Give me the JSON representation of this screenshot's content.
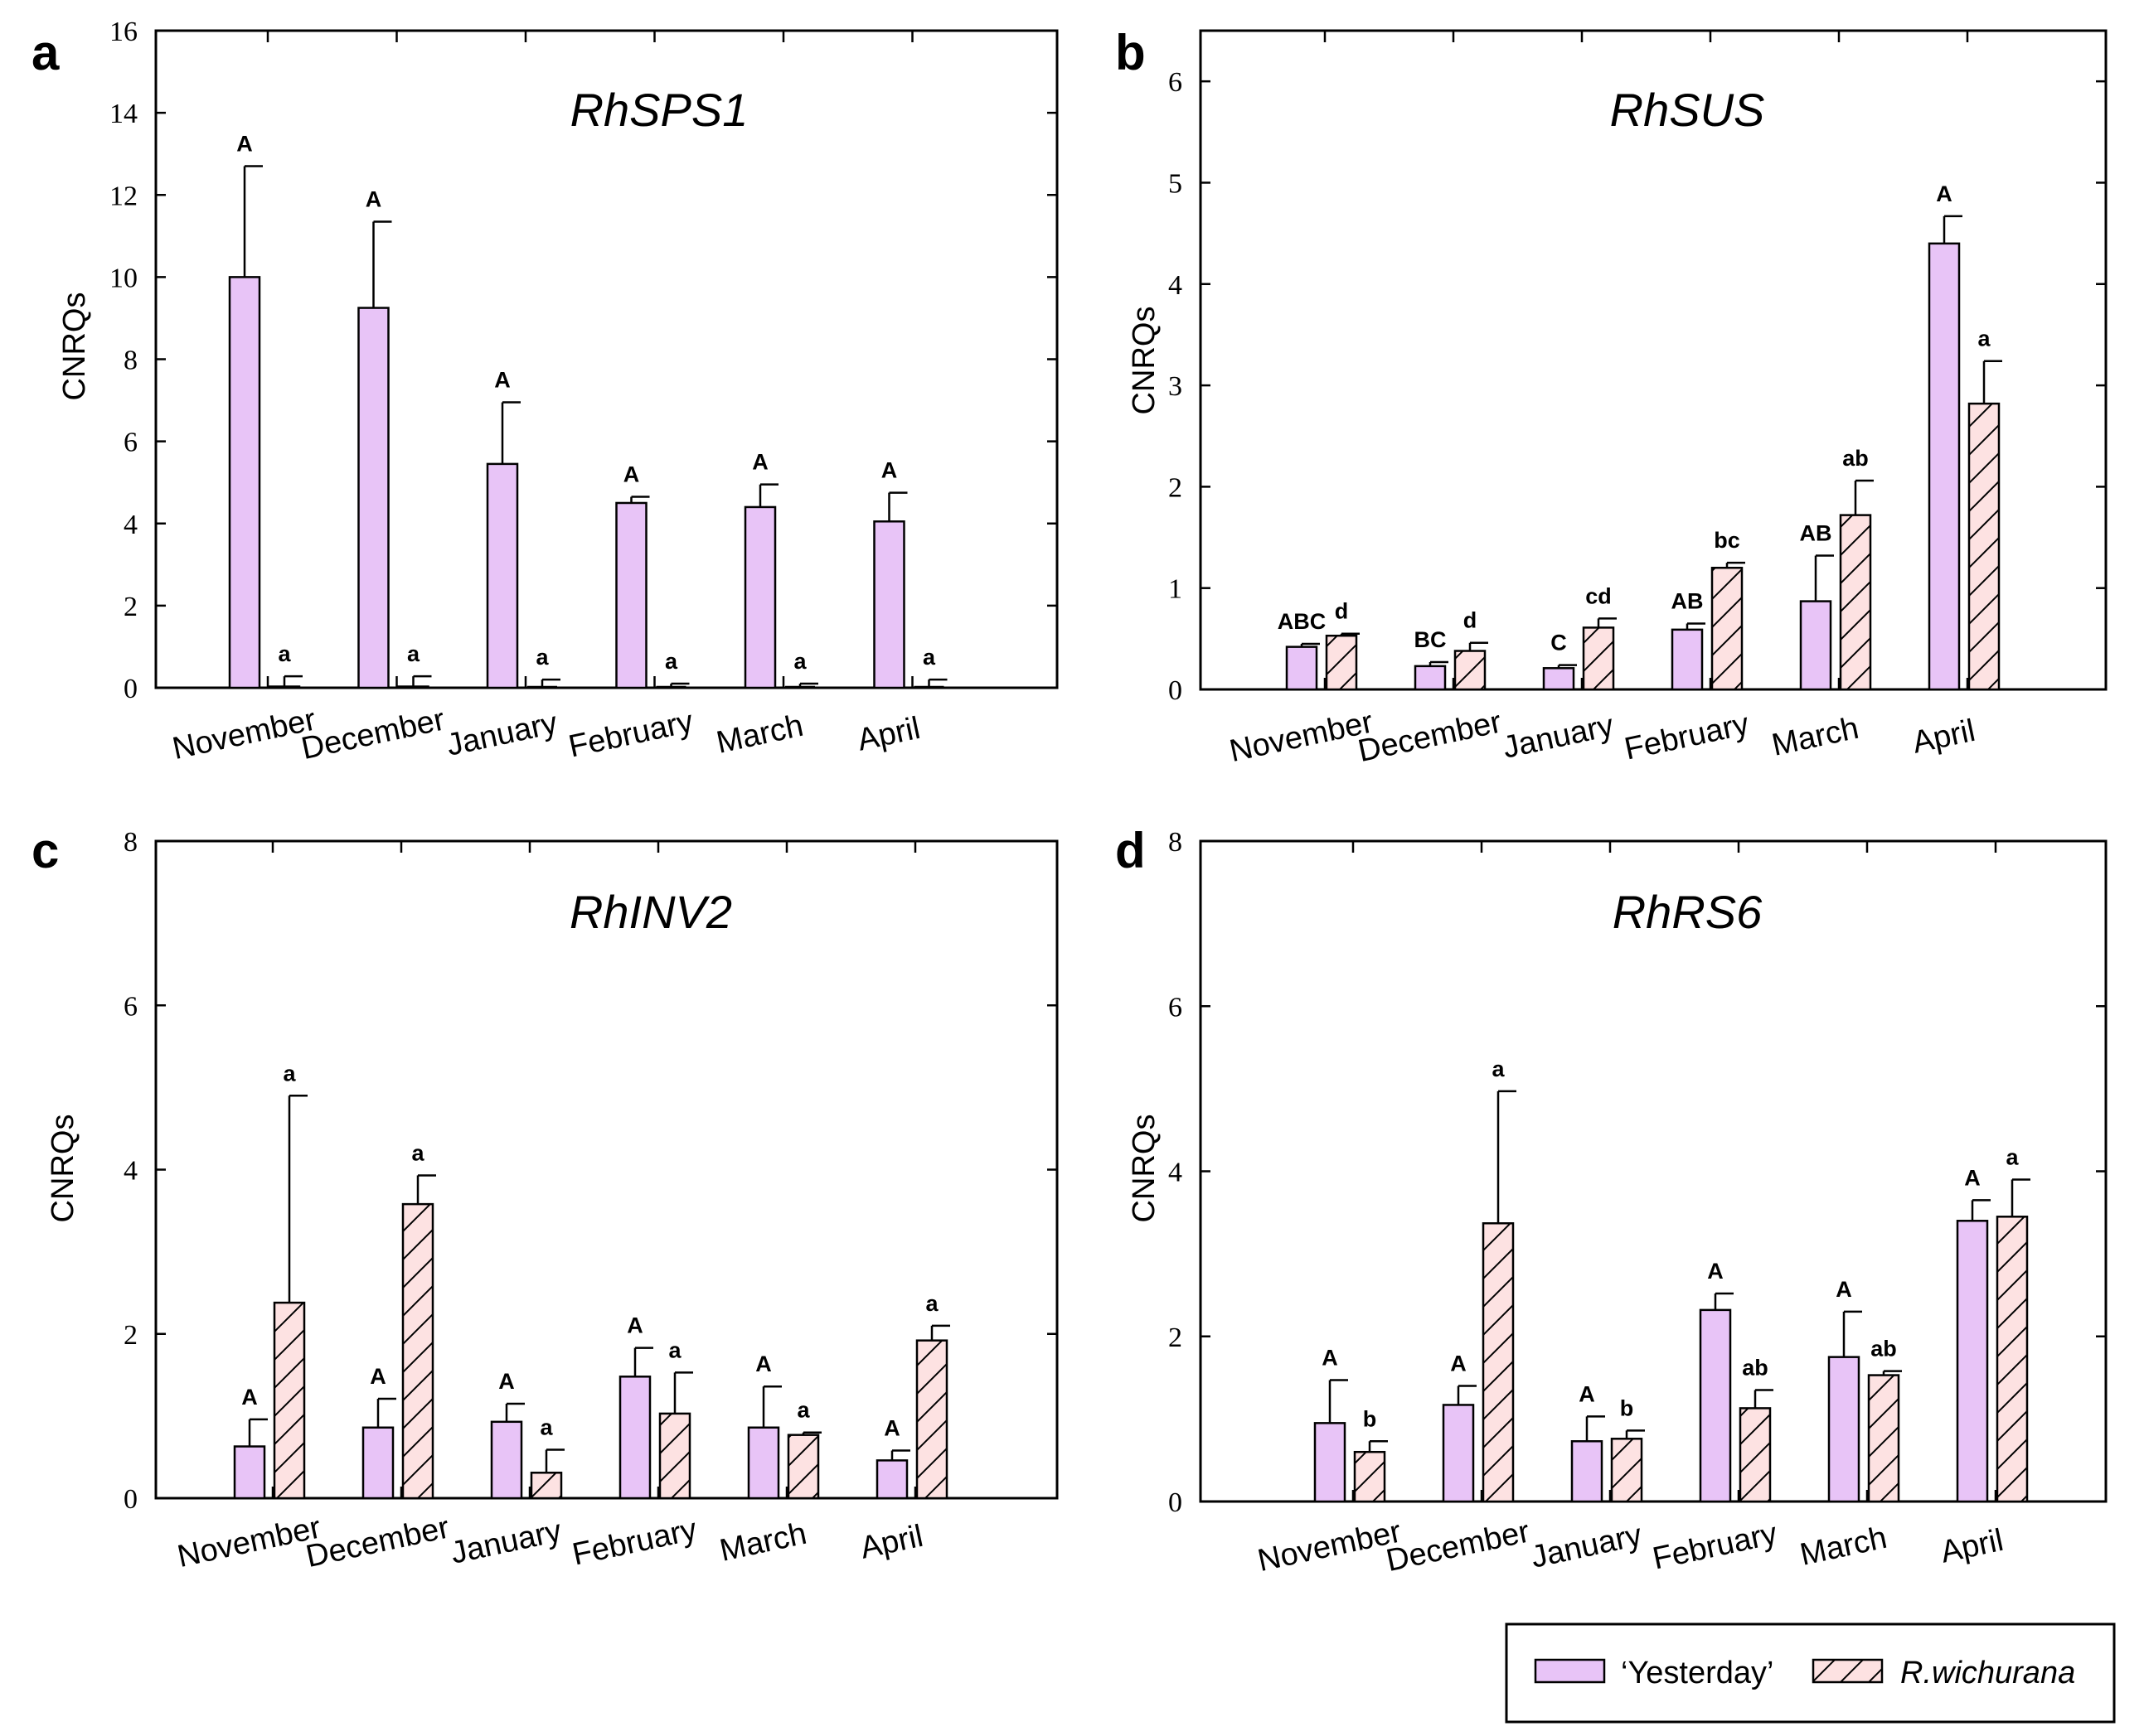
{
  "colors": {
    "yesterday": "#e8c4f7",
    "wichurana": "#fde2e2",
    "stroke": "#000000"
  },
  "legend": {
    "series1": "‘Yesterday’",
    "series2": "R.wichurana"
  },
  "chart_data": [
    {
      "panel": "a",
      "title": "RhSPS1",
      "type": "bar",
      "ylabel": "CNRQs",
      "ylim": [
        0,
        16
      ],
      "yticks": [
        0,
        2,
        4,
        6,
        8,
        10,
        12,
        14,
        16
      ],
      "categories": [
        "November",
        "December",
        "January",
        "February",
        "March",
        "April"
      ],
      "series": [
        {
          "name": "‘Yesterday’",
          "values": [
            10.0,
            9.25,
            5.45,
            4.5,
            4.4,
            4.05
          ],
          "errors": [
            2.7,
            2.1,
            1.5,
            0.15,
            0.55,
            0.7
          ],
          "letters": [
            "A",
            "A",
            "A",
            "A",
            "A",
            "A"
          ]
        },
        {
          "name": "R.wichurana",
          "values": [
            0.03,
            0.03,
            0.0,
            0.0,
            0.0,
            0.0
          ],
          "errors": [
            0.25,
            0.25,
            0.2,
            0.1,
            0.1,
            0.2
          ],
          "letters": [
            "a",
            "a",
            "a",
            "a",
            "a",
            "a"
          ]
        }
      ]
    },
    {
      "panel": "b",
      "title": "RhSUS",
      "type": "bar",
      "ylabel": "CNRQs",
      "ylim": [
        0,
        6.5
      ],
      "yticks": [
        0,
        1,
        2,
        3,
        4,
        5,
        6
      ],
      "categories": [
        "November",
        "December",
        "January",
        "February",
        "March",
        "April"
      ],
      "series": [
        {
          "name": "‘Yesterday’",
          "values": [
            0.42,
            0.23,
            0.21,
            0.59,
            0.87,
            4.4
          ],
          "errors": [
            0.03,
            0.04,
            0.03,
            0.06,
            0.45,
            0.27
          ],
          "letters": [
            "ABC",
            "BC",
            "C",
            "AB",
            "AB",
            "A"
          ]
        },
        {
          "name": "R.wichurana",
          "values": [
            0.53,
            0.38,
            0.61,
            1.2,
            1.72,
            2.82
          ],
          "errors": [
            0.02,
            0.08,
            0.09,
            0.05,
            0.34,
            0.42
          ],
          "letters": [
            "d",
            "d",
            "cd",
            "bc",
            "ab",
            "a"
          ]
        }
      ]
    },
    {
      "panel": "c",
      "title": "RhINV2",
      "type": "bar",
      "ylabel": "CNRQs",
      "ylim": [
        0,
        8
      ],
      "yticks": [
        0,
        2,
        4,
        6,
        8
      ],
      "categories": [
        "November",
        "December",
        "January",
        "February",
        "March",
        "April"
      ],
      "series": [
        {
          "name": "‘Yesterday’",
          "values": [
            0.63,
            0.86,
            0.93,
            1.48,
            0.86,
            0.46
          ],
          "errors": [
            0.33,
            0.35,
            0.22,
            0.35,
            0.5,
            0.12
          ],
          "letters": [
            "A",
            "A",
            "A",
            "A",
            "A",
            "A"
          ]
        },
        {
          "name": "R.wichurana",
          "values": [
            2.38,
            3.58,
            0.31,
            1.03,
            0.77,
            1.92
          ],
          "errors": [
            2.52,
            0.35,
            0.28,
            0.5,
            0.03,
            0.18
          ],
          "letters": [
            "a",
            "a",
            "a",
            "a",
            "a",
            "a"
          ]
        }
      ]
    },
    {
      "panel": "d",
      "title": "RhRS6",
      "type": "bar",
      "ylabel": "CNRQs",
      "ylim": [
        0,
        8
      ],
      "yticks": [
        0,
        2,
        4,
        6,
        8
      ],
      "categories": [
        "November",
        "December",
        "January",
        "February",
        "March",
        "April"
      ],
      "series": [
        {
          "name": "‘Yesterday’",
          "values": [
            0.95,
            1.17,
            0.73,
            2.32,
            1.75,
            3.4
          ],
          "errors": [
            0.52,
            0.23,
            0.3,
            0.2,
            0.55,
            0.25
          ],
          "letters": [
            "A",
            "A",
            "A",
            "A",
            "A",
            "A"
          ]
        },
        {
          "name": "R.wichurana",
          "values": [
            0.6,
            3.37,
            0.76,
            1.13,
            1.53,
            3.45
          ],
          "errors": [
            0.13,
            1.6,
            0.1,
            0.22,
            0.05,
            0.45
          ],
          "letters": [
            "b",
            "a",
            "b",
            "ab",
            "ab",
            "a"
          ]
        }
      ]
    }
  ]
}
